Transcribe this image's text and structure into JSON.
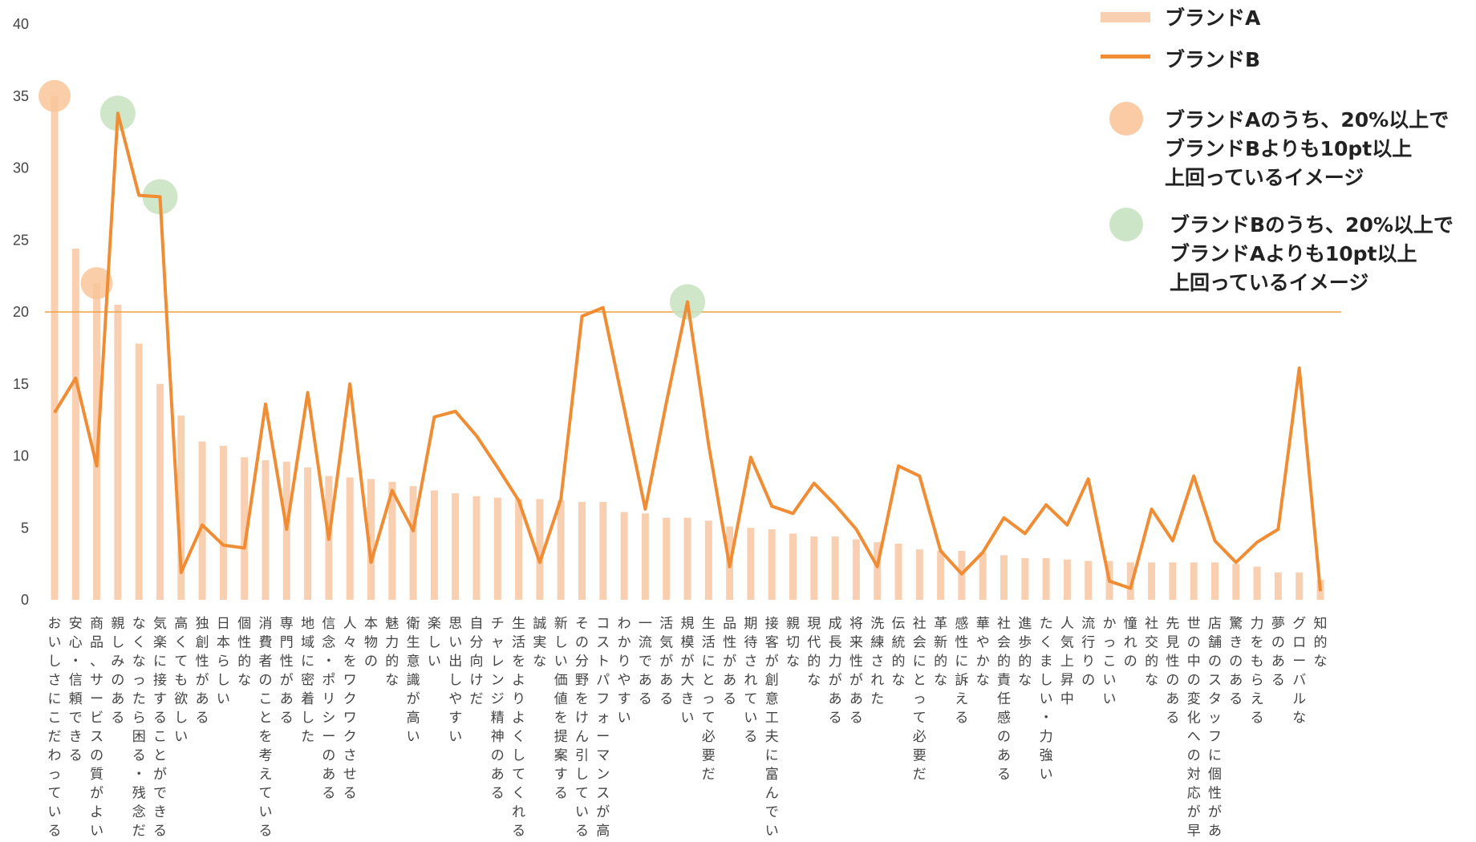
{
  "chart_data": {
    "type": "bar+line",
    "ylim": [
      0,
      40
    ],
    "yticks": [
      "0",
      "5",
      "10",
      "15",
      "20",
      "25",
      "30",
      "35",
      "40"
    ],
    "reference_line": 20,
    "categories": [
      "おいしさにこだわっている",
      "安心・信頼できる",
      "商品、サービスの質がよい",
      "親しみのある",
      "なくなったら困る・残念だ",
      "気楽に接することができる",
      "高くても欲しい",
      "独創性がある",
      "日本らしい",
      "個性的な",
      "消費者のことを考えている",
      "専門性がある",
      "地域に密着した",
      "信念・ポリシーのある",
      "人々をワクワクさせる",
      "本物の",
      "魅力的な",
      "衛生意識が高い",
      "楽しい",
      "思い出しやすい",
      "自分向けだ",
      "チャレンジ精神のある",
      "生活をよりよくしてくれる",
      "誠実な",
      "新しい価値を提案する",
      "その分野をけん引している",
      "コストパフォーマンスが高い",
      "わかりやすい",
      "一流である",
      "活気がある",
      "規模が大きい",
      "生活にとって必要だ",
      "品性がある",
      "期待されている",
      "接客が創意工夫に富んでいる",
      "親切な",
      "現代的な",
      "成長力がある",
      "将来性がある",
      "洗練された",
      "伝統的な",
      "社会にとって必要だ",
      "革新的な",
      "感性に訴える",
      "華やかな",
      "社会的責任感のある",
      "進歩的な",
      "たくましい・力強い",
      "人気上昇中",
      "流行りの",
      "かっこいい",
      "憧れの",
      "社交的な",
      "先見性のある",
      "世の中の変化への対応が早い",
      "店舗のスタッフに個性がある",
      "驚きのある",
      "力をもらえる",
      "夢のある",
      "グローバルな",
      "知的な"
    ],
    "series": [
      {
        "name": "ブランドA",
        "type": "bar",
        "color": "#f8cfb0",
        "values": [
          35,
          24.4,
          22,
          20.5,
          17.8,
          15,
          12.8,
          11,
          10.7,
          9.9,
          9.7,
          9.6,
          9.2,
          8.6,
          8.5,
          8.4,
          8.2,
          7.9,
          7.6,
          7.4,
          7.2,
          7.1,
          7.0,
          7.0,
          6.9,
          6.8,
          6.8,
          6.1,
          6.0,
          5.7,
          5.7,
          5.5,
          5.1,
          5.0,
          4.9,
          4.6,
          4.4,
          4.4,
          4.2,
          4.0,
          3.9,
          3.5,
          3.4,
          3.4,
          3.3,
          3.1,
          2.9,
          2.9,
          2.8,
          2.7,
          2.7,
          2.6,
          2.6,
          2.6,
          2.6,
          2.6,
          2.5,
          2.3,
          1.9,
          1.9,
          1.4
        ]
      },
      {
        "name": "ブランドB",
        "type": "line",
        "color": "#f08c34",
        "values": [
          13,
          15.4,
          9.3,
          33.8,
          28.1,
          28.0,
          1.9,
          5.2,
          3.8,
          3.6,
          13.6,
          4.9,
          14.4,
          4.2,
          15.0,
          2.6,
          7.6,
          4.8,
          12.7,
          13.1,
          11.4,
          9.2,
          6.9,
          2.6,
          7.0,
          19.7,
          20.3,
          13.3,
          6.3,
          13.7,
          20.7,
          10.8,
          2.3,
          9.9,
          6.5,
          6.0,
          8.1,
          6.6,
          4.9,
          2.3,
          9.3,
          8.6,
          3.4,
          1.8,
          3.3,
          5.7,
          4.6,
          6.6,
          5.2,
          8.4,
          1.3,
          0.8,
          6.3,
          4.1,
          8.6,
          4.1,
          2.6,
          4.0,
          4.9,
          16.1,
          0.6
        ]
      }
    ],
    "highlights": {
      "brand_a_indices": [
        0,
        2
      ],
      "brand_b_indices": [
        3,
        5,
        30
      ],
      "colors": {
        "orange": "#f9c59a",
        "green": "#c7e2c0"
      }
    },
    "legend": {
      "position": "top-right",
      "items": [
        {
          "kind": "bar-swatch",
          "label": [
            "ブランドA"
          ]
        },
        {
          "kind": "line-swatch",
          "label": [
            "ブランドB"
          ]
        },
        {
          "kind": "orange-circle",
          "label": [
            "ブランドAのうち、20%以上で",
            "ブランドBよりも10pt以上",
            "上回っているイメージ"
          ]
        },
        {
          "kind": "green-circle",
          "label": [
            "ブランドBのうち、20%以上で",
            "ブランドAよりも10pt以上",
            "上回っているイメージ"
          ]
        }
      ]
    }
  }
}
